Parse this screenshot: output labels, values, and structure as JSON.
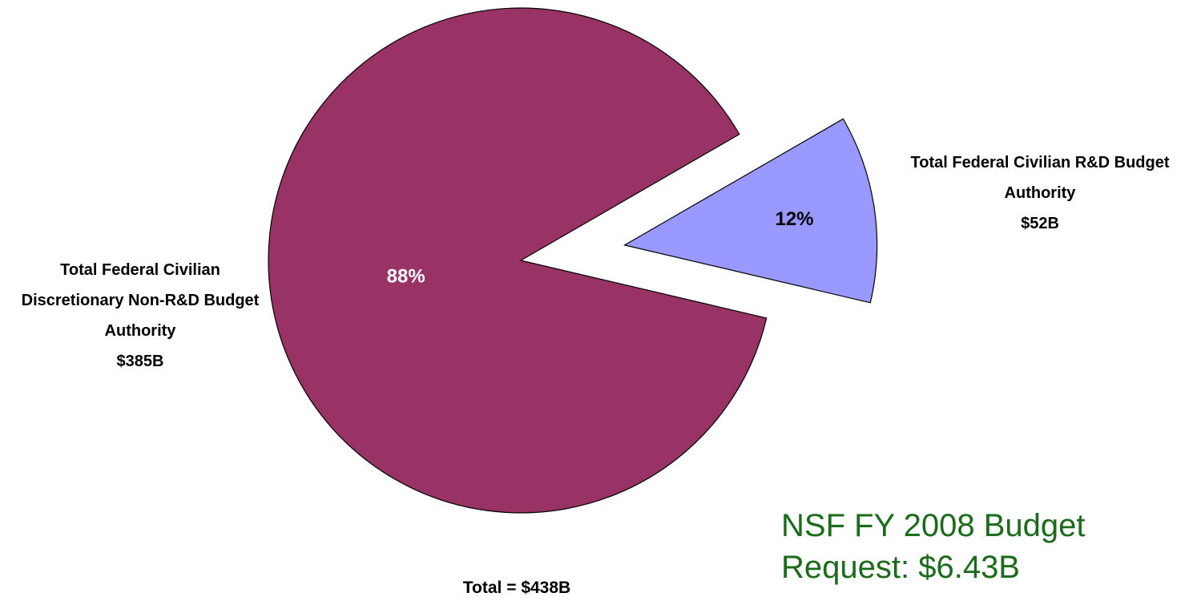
{
  "chart_data": {
    "type": "pie",
    "categories": [
      "Total Federal Civilian Discretionary Non-R&D Budget Authority",
      "Total Federal Civilian R&D Budget Authority"
    ],
    "values": [
      88,
      12
    ],
    "value_labels": [
      "88%",
      "12%"
    ],
    "amount_labels": [
      "$385B",
      "$52B"
    ],
    "colors": [
      "#993366",
      "#9999ff"
    ],
    "explode": [
      false,
      true
    ],
    "annotations": [
      "Total = $438B",
      "NSF FY 2008 Budget Request: $6.43B"
    ]
  }
}
